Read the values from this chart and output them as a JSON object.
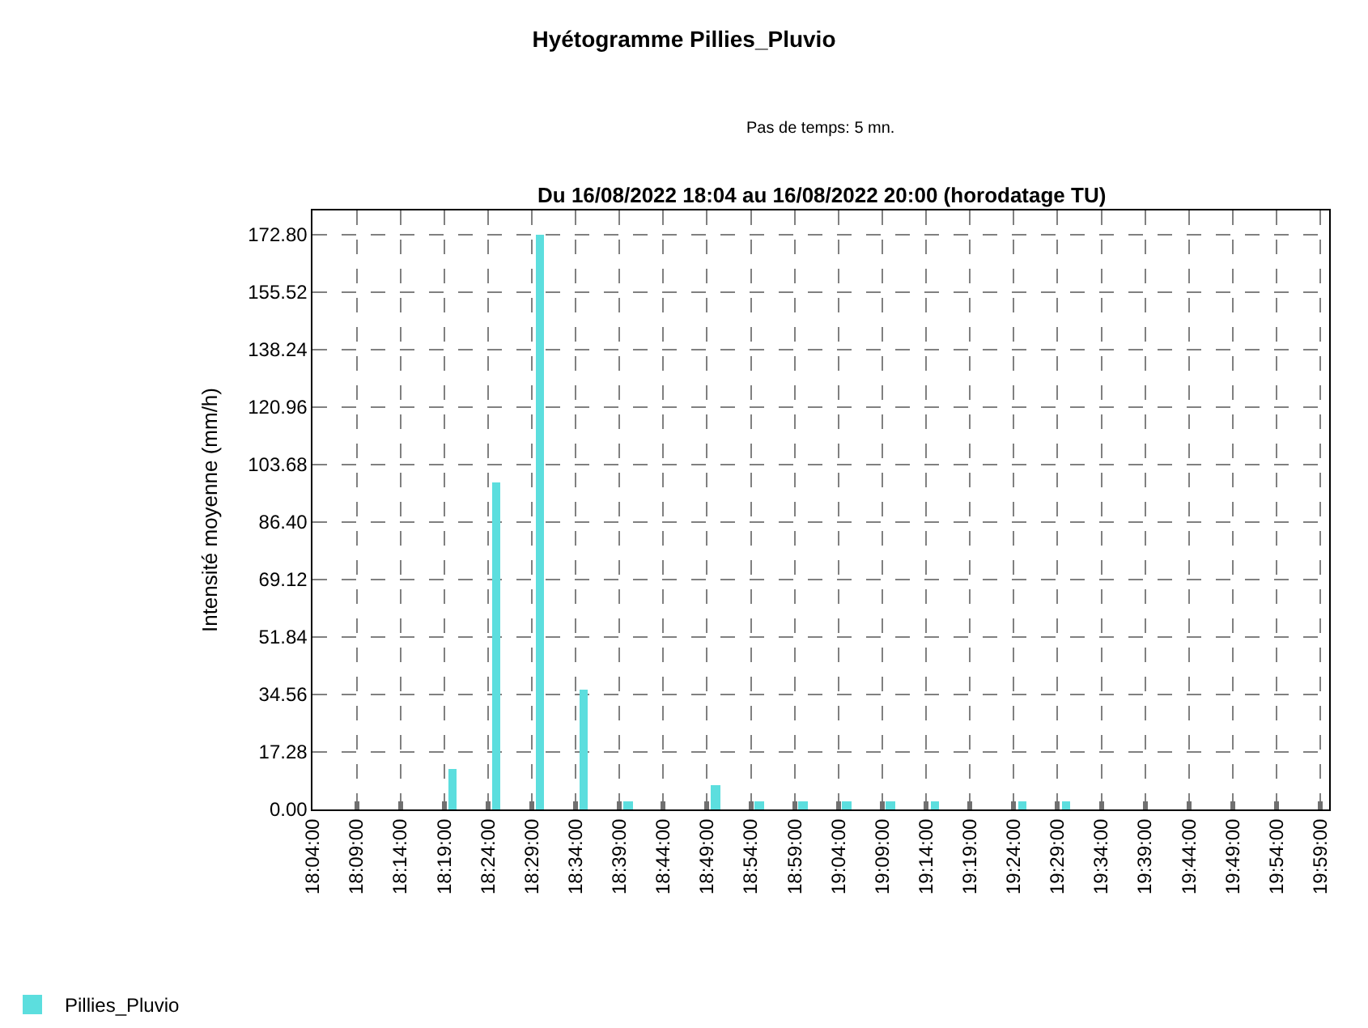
{
  "chart_data": {
    "type": "bar",
    "title": "Hyétogramme Pillies_Pluvio",
    "subtitle": "Pas de temps: 5 mn.",
    "ylabel": "Intensité moyenne (mm/h)",
    "annotations": [
      "Du 16/08/2022 18:04 au 16/08/2022 20:00 (horodatage TU)"
    ],
    "x": [
      "2022-08-16T18:20",
      "2022-08-16T18:25",
      "2022-08-16T18:30",
      "2022-08-16T18:35",
      "2022-08-16T18:40",
      "2022-08-16T18:50",
      "2022-08-16T18:55",
      "2022-08-16T19:00",
      "2022-08-16T19:05",
      "2022-08-16T19:10",
      "2022-08-16T19:15",
      "2022-08-16T19:25",
      "2022-08-16T19:30"
    ],
    "series": [
      {
        "name": "Pillies_Pluvio",
        "color": "#5cdede",
        "values": [
          12,
          98.4,
          172.8,
          36,
          2.4,
          7.2,
          2.4,
          2.4,
          2.4,
          2.4,
          2.4,
          2.4,
          2.4
        ]
      }
    ],
    "xlim": [
      "2022-08-16T18:04",
      "2022-08-16T20:00"
    ],
    "xticks": [
      {
        "value": "2022-08-16T18:04",
        "label": "18:04:00"
      },
      {
        "value": "2022-08-16T18:09",
        "label": "18:09:00"
      },
      {
        "value": "2022-08-16T18:14",
        "label": "18:14:00"
      },
      {
        "value": "2022-08-16T18:19",
        "label": "18:19:00"
      },
      {
        "value": "2022-08-16T18:24",
        "label": "18:24:00"
      },
      {
        "value": "2022-08-16T18:29",
        "label": "18:29:00"
      },
      {
        "value": "2022-08-16T18:34",
        "label": "18:34:00"
      },
      {
        "value": "2022-08-16T18:39",
        "label": "18:39:00"
      },
      {
        "value": "2022-08-16T18:44",
        "label": "18:44:00"
      },
      {
        "value": "2022-08-16T18:49",
        "label": "18:49:00"
      },
      {
        "value": "2022-08-16T18:54",
        "label": "18:54:00"
      },
      {
        "value": "2022-08-16T18:59",
        "label": "18:59:00"
      },
      {
        "value": "2022-08-16T19:04",
        "label": "19:04:00"
      },
      {
        "value": "2022-08-16T19:09",
        "label": "19:09:00"
      },
      {
        "value": "2022-08-16T19:14",
        "label": "19:14:00"
      },
      {
        "value": "2022-08-16T19:19",
        "label": "19:19:00"
      },
      {
        "value": "2022-08-16T19:24",
        "label": "19:24:00"
      },
      {
        "value": "2022-08-16T19:29",
        "label": "19:29:00"
      },
      {
        "value": "2022-08-16T19:34",
        "label": "19:34:00"
      },
      {
        "value": "2022-08-16T19:39",
        "label": "19:39:00"
      },
      {
        "value": "2022-08-16T19:44",
        "label": "19:44:00"
      },
      {
        "value": "2022-08-16T19:49",
        "label": "19:49:00"
      },
      {
        "value": "2022-08-16T19:54",
        "label": "19:54:00"
      },
      {
        "value": "2022-08-16T19:59",
        "label": "19:59:00"
      }
    ],
    "ylim": [
      0,
      180
    ],
    "yticks": [
      {
        "value": 0,
        "label": "0.00"
      },
      {
        "value": 17.28,
        "label": "17.28"
      },
      {
        "value": 34.56,
        "label": "34.56"
      },
      {
        "value": 51.84,
        "label": "51.84"
      },
      {
        "value": 69.12,
        "label": "69.12"
      },
      {
        "value": 86.4,
        "label": "86.40"
      },
      {
        "value": 103.68,
        "label": "103.68"
      },
      {
        "value": 120.96,
        "label": "120.96"
      },
      {
        "value": 138.24,
        "label": "138.24"
      },
      {
        "value": 155.52,
        "label": "155.52"
      },
      {
        "value": 172.8,
        "label": "172.80"
      }
    ],
    "grid": true,
    "legend": "bottom left"
  }
}
